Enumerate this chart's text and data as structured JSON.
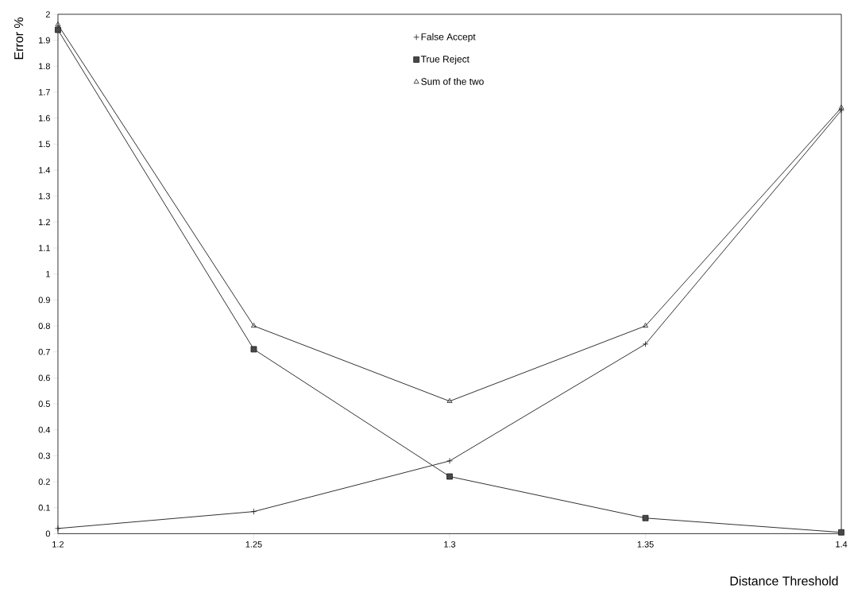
{
  "chart_data": {
    "type": "line",
    "xlabel": "Distance Threshold",
    "ylabel": "Error %",
    "x": [
      1.2,
      1.25,
      1.3,
      1.35,
      1.4
    ],
    "series": [
      {
        "name": "False Accept",
        "color": "#1a1a1a",
        "marker": "cross",
        "values": [
          0.02,
          0.085,
          0.28,
          0.73,
          1.63
        ]
      },
      {
        "name": "True Reject",
        "color": "#1a1a1a",
        "marker": "square",
        "values": [
          1.94,
          0.71,
          0.22,
          0.06,
          0.005
        ]
      },
      {
        "name": "Sum of the two",
        "color": "#1a1a1a",
        "marker": "triangle",
        "values": [
          1.96,
          0.8,
          0.51,
          0.8,
          1.64
        ]
      }
    ],
    "xlim": [
      1.2,
      1.4
    ],
    "xticks": [
      1.2,
      1.25,
      1.3,
      1.35,
      1.4
    ],
    "ylim": [
      0,
      2
    ],
    "yticks": [
      0,
      0.1,
      0.2,
      0.3,
      0.4,
      0.5,
      0.6,
      0.7,
      0.8,
      0.9,
      1,
      1.1,
      1.2,
      1.3,
      1.4,
      1.5,
      1.6,
      1.7,
      1.8,
      1.9,
      2
    ],
    "legend": "top",
    "grid": false,
    "line_style": "solid"
  }
}
